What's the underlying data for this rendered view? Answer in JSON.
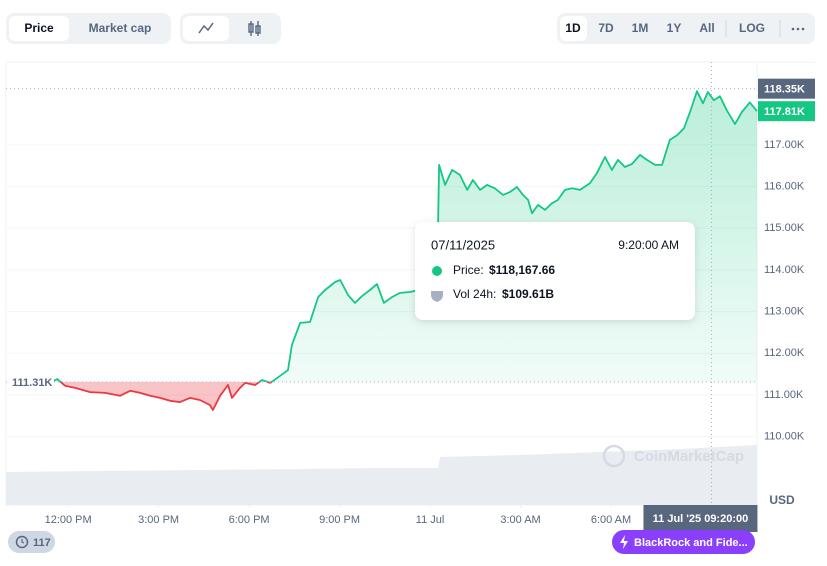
{
  "toolbar": {
    "tabs": [
      "Price",
      "Market cap"
    ],
    "ranges": [
      "1D",
      "7D",
      "1M",
      "1Y",
      "All",
      "LOG"
    ]
  },
  "tooltip": {
    "date": "07/11/2025",
    "time": "9:20:00 AM",
    "price_label": "Price:",
    "price": "$118,167.66",
    "volume_label": "Vol 24h:",
    "volume": "$109.61B"
  },
  "currency": "USD",
  "watermark": "CoinMarketCap",
  "news_count": 117,
  "news": "BlackRock and Fide...",
  "chart_data": {
    "type": "line",
    "x": [
      11.44,
      11.64,
      11.9,
      12.23,
      12.73,
      13.23,
      13.72,
      14.06,
      14.39,
      14.72,
      15.05,
      15.38,
      15.71,
      16.04,
      16.37,
      16.7,
      16.8,
      17.04,
      17.3,
      17.43,
      17.7,
      17.87,
      18.2,
      18.43,
      18.7,
      19.03,
      19.29,
      19.42,
      19.69,
      20.02,
      20.29,
      20.52,
      20.85,
      21.02,
      21.28,
      21.51,
      21.74,
      22.01,
      22.24,
      22.47,
      22.74,
      23.0,
      23.34,
      23.6,
      24.23,
      24.3,
      24.5,
      24.73,
      24.99,
      25.23,
      25.42,
      25.66,
      25.89,
      26.15,
      26.42,
      26.65,
      26.88,
      27.08,
      27.25,
      27.38,
      27.58,
      27.81,
      28.04,
      28.24,
      28.47,
      28.71,
      28.97,
      29.3,
      29.53,
      29.8,
      30.03,
      30.23,
      30.46,
      30.69,
      30.96,
      31.19,
      31.46,
      31.69,
      31.95,
      32.19,
      32.42,
      32.62,
      32.85,
      33.05,
      33.21,
      33.41,
      33.61,
      33.84,
      34.11,
      34.34,
      34.6,
      34.84
    ],
    "values": [
      111.31,
      111.38,
      111.22,
      111.17,
      111.07,
      111.05,
      110.98,
      111.1,
      111.05,
      110.98,
      110.93,
      110.86,
      110.83,
      110.93,
      110.88,
      110.76,
      110.64,
      110.98,
      111.24,
      110.93,
      111.17,
      111.29,
      111.24,
      111.36,
      111.29,
      111.46,
      111.6,
      112.2,
      112.73,
      112.75,
      113.35,
      113.52,
      113.71,
      113.76,
      113.4,
      113.21,
      113.37,
      113.52,
      113.66,
      113.21,
      113.35,
      113.45,
      113.47,
      113.52,
      113.64,
      116.52,
      116.04,
      116.4,
      116.28,
      115.92,
      116.16,
      115.92,
      116.04,
      115.96,
      115.8,
      115.87,
      115.99,
      115.8,
      115.68,
      115.36,
      115.56,
      115.44,
      115.6,
      115.68,
      115.92,
      115.96,
      115.92,
      116.08,
      116.32,
      116.71,
      116.4,
      116.64,
      116.47,
      116.54,
      116.76,
      116.64,
      116.52,
      116.52,
      117.12,
      117.23,
      117.4,
      117.79,
      118.29,
      118.0,
      118.27,
      118.07,
      118.17,
      117.83,
      117.5,
      117.79,
      118.02,
      117.81
    ],
    "colors": {
      "up": "#16c784",
      "down": "#ea3943"
    },
    "xlim": [
      9.94,
      34.84
    ],
    "ylim": [
      108.36,
      118.99
    ],
    "xticks": [
      {
        "value": 12,
        "label": "12:00 PM"
      },
      {
        "value": 15,
        "label": "3:00 PM"
      },
      {
        "value": 18,
        "label": "6:00 PM"
      },
      {
        "value": 21,
        "label": "9:00 PM"
      },
      {
        "value": 24,
        "label": "11 Jul"
      },
      {
        "value": 27,
        "label": "3:00 AM"
      },
      {
        "value": 30,
        "label": "6:00 AM"
      }
    ],
    "yticks": [
      {
        "value": 110,
        "label": "110.00K"
      },
      {
        "value": 111,
        "label": "111.00K"
      },
      {
        "value": 112,
        "label": "112.00K"
      },
      {
        "value": 113,
        "label": "113.00K"
      },
      {
        "value": 114,
        "label": "114.00K"
      },
      {
        "value": 115,
        "label": "115.00K"
      },
      {
        "value": 116,
        "label": "116.00K"
      },
      {
        "value": 117,
        "label": "117.00K"
      }
    ],
    "baseline": {
      "value": 111.31,
      "label": "111.31K"
    },
    "current": {
      "value": 117.81,
      "label": "117.81K"
    },
    "crosshair_y": {
      "value": 118.35,
      "label": "118.35K"
    },
    "crosshair_x": {
      "value": 33.33,
      "label": "11 Jul '25 09:20:00"
    },
    "grid": true
  }
}
